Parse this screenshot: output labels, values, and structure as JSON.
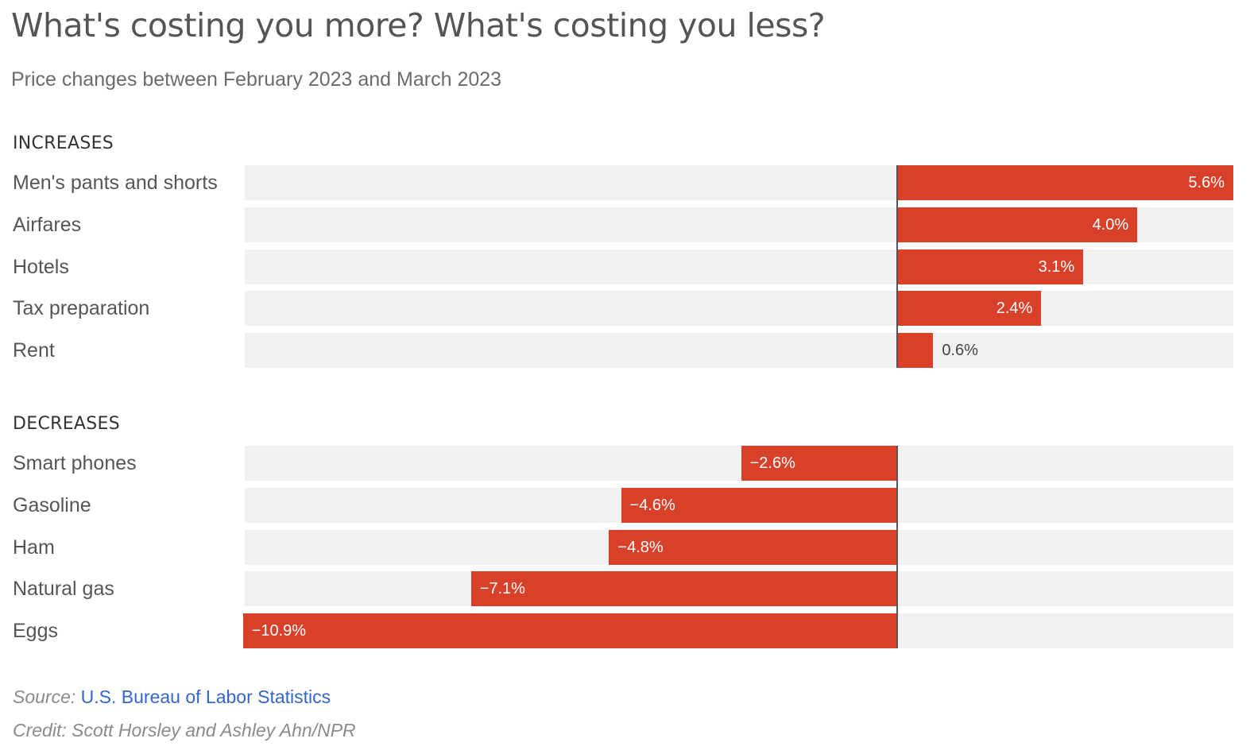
{
  "title": "What's costing you more? What's costing you less?",
  "subtitle": "Price changes between February 2023 and March 2023",
  "chart_data": {
    "type": "bar",
    "orientation": "horizontal",
    "xlim": [
      -10.9,
      5.6
    ],
    "groups": [
      {
        "label": "INCREASES",
        "categories": [
          "Men's pants and shorts",
          "Airfares",
          "Hotels",
          "Tax preparation",
          "Rent"
        ],
        "values": [
          5.6,
          4.0,
          3.1,
          2.4,
          0.6
        ],
        "value_labels": [
          "5.6%",
          "4.0%",
          "3.1%",
          "2.4%",
          "0.6%"
        ]
      },
      {
        "label": "DECREASES",
        "categories": [
          "Smart phones",
          "Gasoline",
          "Ham",
          "Natural gas",
          "Eggs"
        ],
        "values": [
          -2.6,
          -4.6,
          -4.8,
          -7.1,
          -10.9
        ],
        "value_labels": [
          "−2.6%",
          "−4.6%",
          "−4.8%",
          "−7.1%",
          "−10.9%"
        ]
      }
    ],
    "bar_color": "#d8402a",
    "track_color": "#f1f1f1"
  },
  "footer": {
    "source_label": "Source:",
    "source_link": "U.S. Bureau of Labor Statistics",
    "credit": "Credit: Scott Horsley and Ashley Ahn/NPR"
  }
}
